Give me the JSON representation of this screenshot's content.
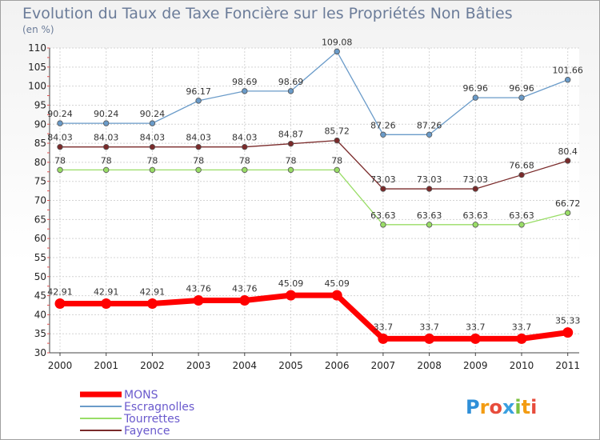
{
  "chart_data": {
    "type": "line",
    "title": "Evolution du Taux de Taxe Foncière sur les Propriétés Non Bâties",
    "unit": "(en %)",
    "xlabel": "",
    "ylabel": "",
    "categories": [
      "2000",
      "2001",
      "2002",
      "2003",
      "2004",
      "2005",
      "2006",
      "2007",
      "2008",
      "2009",
      "2010",
      "2011"
    ],
    "ylim": [
      30,
      110
    ],
    "yticks": [
      30,
      35,
      40,
      45,
      50,
      55,
      60,
      65,
      70,
      75,
      80,
      85,
      90,
      95,
      100,
      105,
      110
    ],
    "grid": true,
    "legend_position": "bottom-left",
    "series": [
      {
        "name": "MONS",
        "color": "#ff0000",
        "values": [
          42.91,
          42.91,
          42.91,
          43.76,
          43.76,
          45.09,
          45.09,
          33.7,
          33.7,
          33.7,
          33.7,
          35.33
        ],
        "labels": [
          "42.91",
          "42.91",
          "42.91",
          "43.76",
          "43.76",
          "45.09",
          "45.09",
          "33.7",
          "33.7",
          "33.7",
          "33.7",
          "35.33"
        ]
      },
      {
        "name": "Escragnolles",
        "color": "#6a9bc9",
        "values": [
          90.24,
          90.24,
          90.24,
          96.17,
          98.69,
          98.69,
          109.08,
          87.26,
          87.26,
          96.96,
          96.96,
          101.66
        ],
        "labels": [
          "90.24",
          "90.24",
          "90.24",
          "96.17",
          "98.69",
          "98.69",
          "109.08",
          "87.26",
          "87.26",
          "96.96",
          "96.96",
          "101.66"
        ]
      },
      {
        "name": "Tourrettes",
        "color": "#99dd66",
        "values": [
          78,
          78,
          78,
          78,
          78,
          78,
          78,
          63.63,
          63.63,
          63.63,
          63.63,
          66.72
        ],
        "labels": [
          "78",
          "78",
          "78",
          "78",
          "78",
          "78",
          "78",
          "63.63",
          "63.63",
          "63.63",
          "63.63",
          "66.72"
        ]
      },
      {
        "name": "Fayence",
        "color": "#7a2a2a",
        "values": [
          84.03,
          84.03,
          84.03,
          84.03,
          84.03,
          84.87,
          85.72,
          73.03,
          73.03,
          73.03,
          76.68,
          80.4
        ],
        "labels": [
          "84.03",
          "84.03",
          "84.03",
          "84.03",
          "84.03",
          "84.87",
          "85.72",
          "73.03",
          "73.03",
          "73.03",
          "76.68",
          "80.4"
        ]
      }
    ]
  },
  "logo": {
    "text": "Proxiti",
    "letters": [
      "P",
      "r",
      "o",
      "x",
      "i",
      "t",
      "i"
    ],
    "colors": [
      "#2f8fd8",
      "#f39c12",
      "#e74c3c",
      "#3aa0e0",
      "#7cc242",
      "#f39c12",
      "#e74c3c"
    ]
  },
  "legend_text_color": "#6a5acd"
}
